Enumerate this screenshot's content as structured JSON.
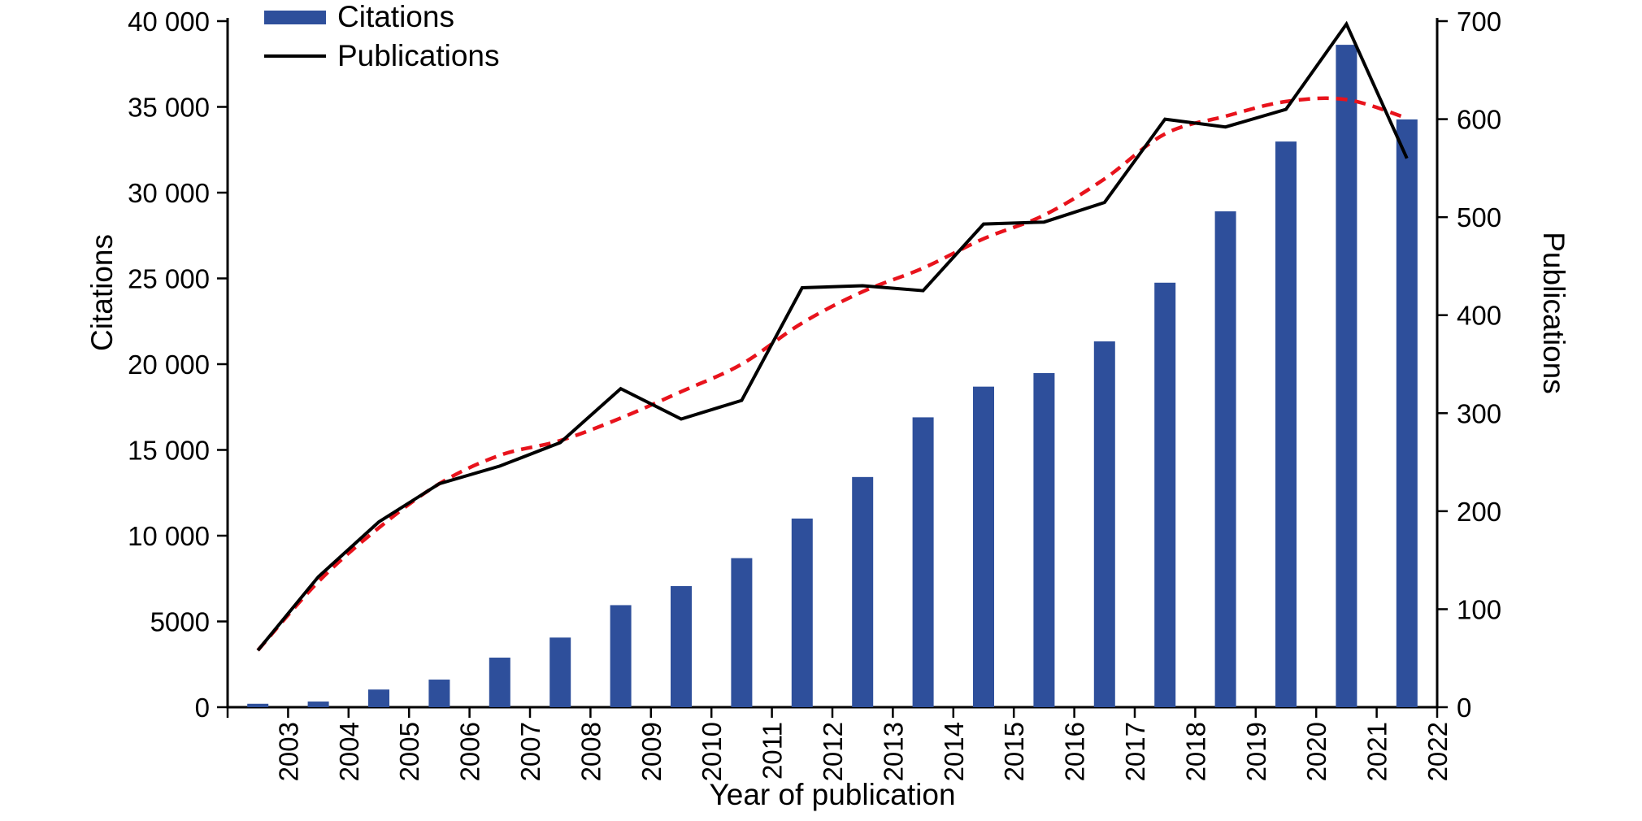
{
  "figure": {
    "background": "#ffffff"
  },
  "legend": {
    "items": [
      {
        "label": "Citations",
        "type": "bar",
        "color": "#2e4f9b"
      },
      {
        "label": "Publications",
        "type": "line",
        "color": "#000000"
      }
    ]
  },
  "axes": {
    "left": {
      "title": "Citations",
      "tick_labels": [
        "0",
        "5000",
        "10 000",
        "15 000",
        "20 000",
        "25 000",
        "30 000",
        "35 000",
        "40 000"
      ],
      "tick_values": [
        0,
        5000,
        10000,
        15000,
        20000,
        25000,
        30000,
        35000,
        40000
      ],
      "range": [
        0,
        40000
      ]
    },
    "right": {
      "title": "Publications",
      "tick_labels": [
        "0",
        "100",
        "200",
        "300",
        "400",
        "500",
        "600",
        "700"
      ],
      "tick_values": [
        0,
        100,
        200,
        300,
        400,
        500,
        600,
        700
      ],
      "range": [
        0,
        700
      ]
    },
    "bottom": {
      "title": "Year of publication",
      "tick_labels": [
        "2003",
        "2004",
        "2005",
        "2006",
        "2007",
        "2008",
        "2009",
        "2010",
        "2011",
        "2012",
        "2013",
        "2014",
        "2015",
        "2016",
        "2017",
        "2018",
        "2019",
        "2020",
        "2021",
        "2022"
      ]
    }
  },
  "chart_data": {
    "type": "bar",
    "subtype": "bar+line dual axis",
    "categories": [
      2003,
      2004,
      2005,
      2006,
      2007,
      2008,
      2009,
      2010,
      2011,
      2012,
      2013,
      2014,
      2015,
      2016,
      2017,
      2018,
      2019,
      2020,
      2021,
      2022
    ],
    "series": [
      {
        "name": "Citations",
        "type": "bar",
        "axis": "left",
        "color": "#2e4f9b",
        "values": [
          200,
          330,
          1030,
          1610,
          2890,
          4060,
          5950,
          7060,
          8690,
          11000,
          13420,
          16900,
          18690,
          19480,
          21330,
          24750,
          28910,
          32980,
          38620,
          34270
        ]
      },
      {
        "name": "Publications",
        "type": "line",
        "axis": "right",
        "color": "#000000",
        "values": [
          58,
          133,
          189,
          228,
          246,
          270,
          325,
          294,
          313,
          428,
          430,
          425,
          493,
          495,
          515,
          600,
          592,
          610,
          697,
          560
        ]
      },
      {
        "name": "Publications trend (smoothed)",
        "type": "dashed-curve",
        "axis": "right",
        "color": "#e8131c",
        "values": [
          58,
          128,
          183,
          228,
          257,
          272,
          295,
          322,
          350,
          392,
          424,
          448,
          478,
          502,
          539,
          585,
          603,
          618,
          620,
          601
        ]
      }
    ],
    "title": "",
    "xlabel": "Year of publication",
    "ylabel_left": "Citations",
    "ylabel_right": "Publications",
    "left_ylim": [
      0,
      40000
    ],
    "right_ylim": [
      0,
      700
    ],
    "grid": false,
    "legend_position": "top-left-inside"
  }
}
